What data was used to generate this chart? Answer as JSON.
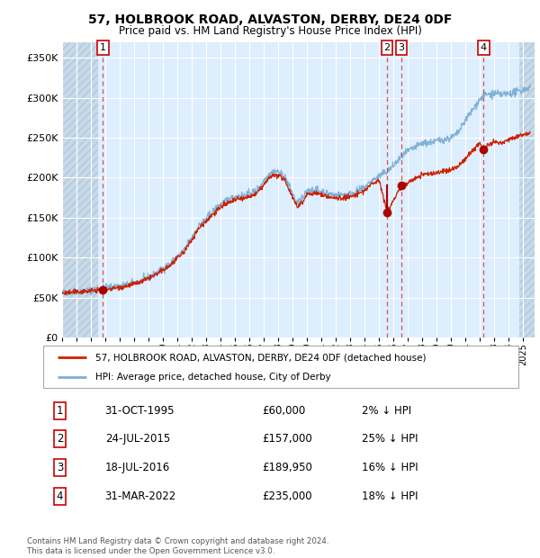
{
  "title": "57, HOLBROOK ROAD, ALVASTON, DERBY, DE24 0DF",
  "subtitle": "Price paid vs. HM Land Registry's House Price Index (HPI)",
  "ylim": [
    0,
    370000
  ],
  "yticks": [
    0,
    50000,
    100000,
    150000,
    200000,
    250000,
    300000,
    350000
  ],
  "ytick_labels": [
    "£0",
    "£50K",
    "£100K",
    "£150K",
    "£200K",
    "£250K",
    "£300K",
    "£350K"
  ],
  "xlim_start": 1993.0,
  "xlim_end": 2025.8,
  "hpi_color": "#7bafd4",
  "price_color": "#cc2200",
  "sale_marker_color": "#aa0000",
  "vline_color": "#dd3333",
  "bg_color": "#ddeeff",
  "hatch_region_color": "#c8daea",
  "grid_color": "#ffffff",
  "legend_line1": "57, HOLBROOK ROAD, ALVASTON, DERBY, DE24 0DF (detached house)",
  "legend_line2": "HPI: Average price, detached house, City of Derby",
  "sales": [
    {
      "num": 1,
      "year": 1995.83,
      "price": 60000,
      "label": "31-OCT-1995",
      "pct": "2%",
      "dir": "↓"
    },
    {
      "num": 2,
      "year": 2015.56,
      "price": 157000,
      "label": "24-JUL-2015",
      "pct": "25%",
      "dir": "↓"
    },
    {
      "num": 3,
      "year": 2016.54,
      "price": 189950,
      "label": "18-JUL-2016",
      "pct": "16%",
      "dir": "↓"
    },
    {
      "num": 4,
      "year": 2022.25,
      "price": 235000,
      "label": "31-MAR-2022",
      "pct": "18%",
      "dir": "↓"
    }
  ],
  "footnote": "Contains HM Land Registry data © Crown copyright and database right 2024.\nThis data is licensed under the Open Government Licence v3.0.",
  "table_rows": [
    [
      "1",
      "31-OCT-1995",
      "£60,000",
      "2% ↓ HPI"
    ],
    [
      "2",
      "24-JUL-2015",
      "£157,000",
      "25% ↓ HPI"
    ],
    [
      "3",
      "18-JUL-2016",
      "£189,950",
      "16% ↓ HPI"
    ],
    [
      "4",
      "31-MAR-2022",
      "£235,000",
      "18% ↓ HPI"
    ]
  ]
}
